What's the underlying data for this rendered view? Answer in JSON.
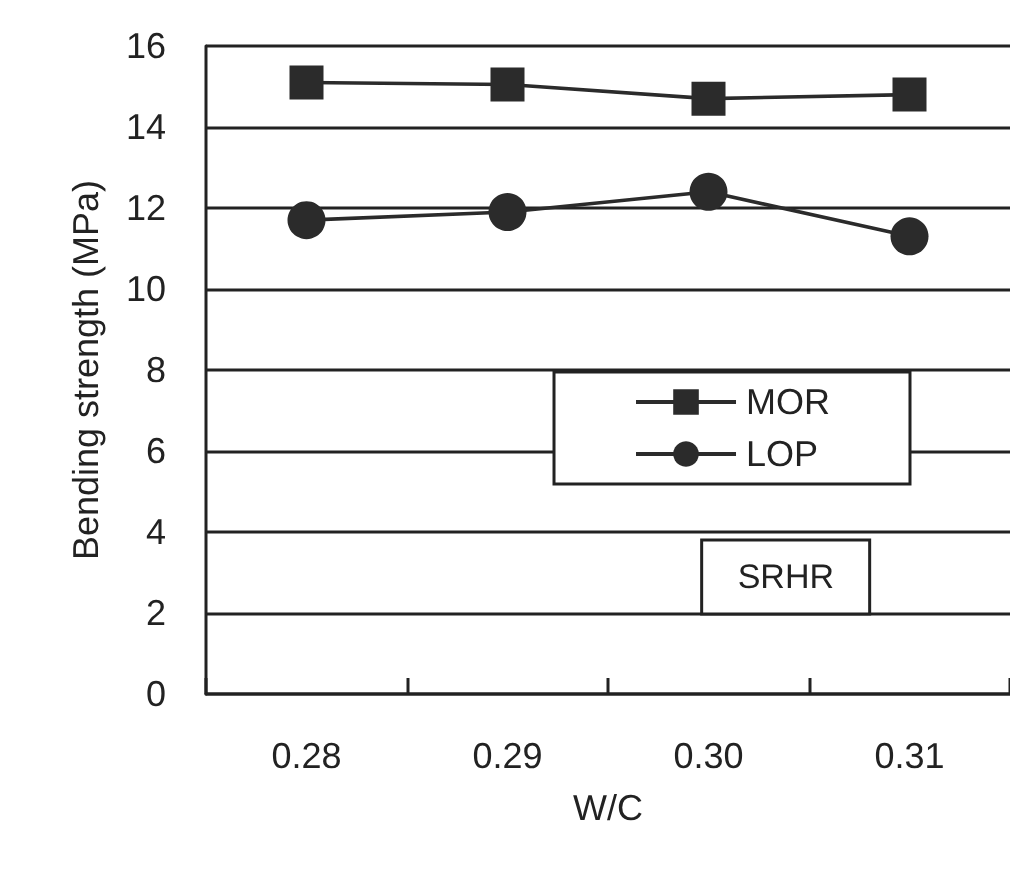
{
  "chart_data": {
    "type": "line",
    "xlabel": "W/C",
    "ylabel": "Bending strength (MPa)",
    "categories": [
      "0.28",
      "0.29",
      "0.30",
      "0.31"
    ],
    "series": [
      {
        "name": "MOR",
        "color": "#2b2b2b",
        "marker": "square",
        "values": [
          15.1,
          15.05,
          14.7,
          14.8
        ]
      },
      {
        "name": "LOP",
        "color": "#2b2b2b",
        "marker": "circle",
        "values": [
          11.7,
          11.9,
          12.4,
          11.3
        ]
      }
    ],
    "ylim": [
      0,
      16
    ],
    "yticks": [
      0,
      2,
      4,
      6,
      8,
      10,
      12,
      14,
      16
    ],
    "grid": "y",
    "legend": "right",
    "line_style": "solid",
    "annotations": [
      "SRHR"
    ]
  }
}
